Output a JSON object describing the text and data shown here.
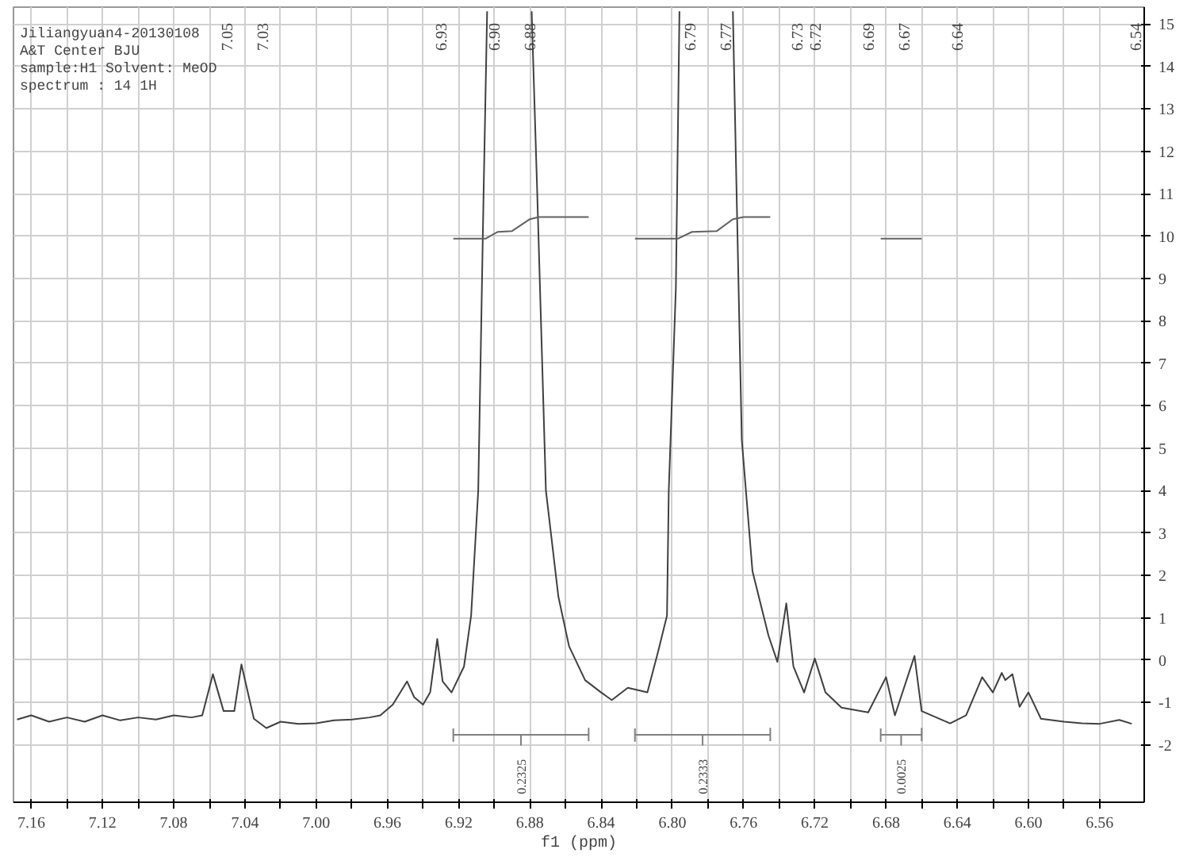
{
  "chart_data": {
    "type": "line",
    "xlabel": "f1 (ppm)",
    "xlim": [
      7.17,
      6.535
    ],
    "ylim": [
      -3.35,
      15.4
    ],
    "xticks": [
      7.16,
      {
        "value": 7.14,
        "label": null
      },
      7.12,
      {
        "value": 7.1,
        "label": null
      },
      7.08,
      {
        "value": 7.06,
        "label": null
      },
      7.04,
      {
        "value": 7.02,
        "label": null
      },
      {
        "value": 7.0,
        "label": "7.00"
      },
      {
        "value": 6.98,
        "label": null
      },
      6.96,
      {
        "value": 6.94,
        "label": null
      },
      6.92,
      {
        "value": 6.9,
        "label": null
      },
      6.88,
      {
        "value": 6.86,
        "label": null
      },
      6.84,
      {
        "value": 6.82,
        "label": null
      },
      {
        "value": 6.8,
        "label": "6.80"
      },
      {
        "value": 6.78,
        "label": null
      },
      6.76,
      {
        "value": 6.74,
        "label": null
      },
      6.72,
      {
        "value": 6.7,
        "label": null
      },
      6.68,
      {
        "value": 6.66,
        "label": null
      },
      6.64,
      {
        "value": 6.62,
        "label": null
      },
      {
        "value": 6.6,
        "label": "6.60"
      },
      {
        "value": 6.58,
        "label": null
      },
      6.56
    ],
    "yticks": [
      -2,
      -1,
      0,
      1,
      2,
      3,
      4,
      5,
      6,
      7,
      8,
      9,
      10,
      11,
      12,
      13,
      14,
      15
    ],
    "grid": true,
    "marker": "none",
    "line_style": "solid",
    "series": [
      {
        "color": "#404040",
        "x": [
          7.168,
          7.16,
          7.15,
          7.14,
          7.13,
          7.12,
          7.11,
          7.1,
          7.09,
          7.08,
          7.07,
          7.064,
          7.058,
          7.052,
          7.046,
          7.042,
          7.035,
          7.028,
          7.02,
          7.01,
          7.0,
          6.99,
          6.98,
          6.97,
          6.964,
          6.957,
          6.949,
          6.945,
          6.94,
          6.936,
          6.932,
          6.929,
          6.924,
          6.917,
          6.913,
          6.909,
          6.906,
          6.904,
          6.89,
          6.879,
          6.876,
          6.871,
          6.864,
          6.858,
          6.849,
          6.84,
          6.834,
          6.825,
          6.814,
          6.808,
          6.803,
          6.802,
          6.798,
          6.796,
          6.78,
          6.766,
          6.764,
          6.761,
          6.755,
          6.746,
          6.741,
          6.736,
          6.732,
          6.726,
          6.72,
          6.714,
          6.705,
          6.69,
          6.68,
          6.675,
          6.664,
          6.66,
          6.644,
          6.635,
          6.626,
          6.62,
          6.615,
          6.613,
          6.609,
          6.605,
          6.6,
          6.593,
          6.58,
          6.57,
          6.56,
          6.549,
          6.542
        ],
        "values": [
          -1.4,
          -1.3,
          -1.45,
          -1.35,
          -1.45,
          -1.3,
          -1.42,
          -1.35,
          -1.4,
          -1.3,
          -1.35,
          -1.3,
          -0.33,
          -1.2,
          -1.2,
          -0.1,
          -1.38,
          -1.6,
          -1.45,
          -1.5,
          -1.49,
          -1.42,
          -1.4,
          -1.35,
          -1.3,
          -1.05,
          -0.5,
          -0.87,
          -1.05,
          -0.76,
          0.5,
          -0.5,
          -0.76,
          -0.15,
          1.05,
          4.0,
          11.0,
          15.3,
          null,
          15.3,
          11.2,
          4.0,
          1.5,
          0.33,
          -0.47,
          -0.76,
          -0.94,
          -0.65,
          -0.76,
          0.2,
          1.05,
          4.0,
          8.8,
          15.3,
          null,
          15.3,
          11.2,
          5.2,
          2.1,
          0.58,
          -0.04,
          1.34,
          -0.15,
          -0.76,
          0.04,
          -0.76,
          -1.12,
          -1.23,
          -0.4,
          -1.3,
          0.1,
          -1.2,
          -1.49,
          -1.3,
          -0.4,
          -0.76,
          -0.3,
          -0.47,
          -0.33,
          -1.1,
          -0.76,
          -1.38,
          -1.45,
          -1.49,
          -1.5,
          -1.41,
          -1.5
        ]
      },
      {
        "color": "#606060",
        "x": [
          6.923,
          6.905,
          6.898,
          6.89,
          6.88,
          6.875,
          6.847
        ],
        "values": [
          9.94,
          9.94,
          10.1,
          10.12,
          10.4,
          10.45,
          10.45
        ]
      },
      {
        "color": "#606060",
        "x": [
          6.821,
          6.797,
          6.789,
          6.775,
          6.766,
          6.76,
          6.745
        ],
        "values": [
          9.94,
          9.94,
          10.1,
          10.12,
          10.4,
          10.45,
          10.45
        ]
      },
      {
        "color": "#606060",
        "x": [
          6.683,
          6.66
        ],
        "values": [
          9.94,
          9.94
        ]
      },
      {
        "color": "#808080",
        "x": [
          6.923,
          6.923,
          6.923,
          6.885,
          6.885,
          6.885,
          6.847,
          6.847,
          6.847
        ],
        "values": [
          -1.61,
          -1.91,
          -1.76,
          -1.76,
          -2.0,
          -1.76,
          -1.76,
          -1.61,
          -1.91
        ]
      },
      {
        "color": "#808080",
        "x": [
          6.821,
          6.821,
          6.821,
          6.783,
          6.783,
          6.783,
          6.745,
          6.745,
          6.745
        ],
        "values": [
          -1.61,
          -1.91,
          -1.76,
          -1.76,
          -2.0,
          -1.76,
          -1.76,
          -1.61,
          -1.91
        ]
      },
      {
        "color": "#808080",
        "x": [
          6.683,
          6.683,
          6.683,
          6.6715,
          6.6715,
          6.6715,
          6.66,
          6.66,
          6.66
        ],
        "values": [
          -1.61,
          -1.91,
          -1.76,
          -1.76,
          -2.0,
          -1.76,
          -1.76,
          -1.61,
          -1.91
        ]
      }
    ],
    "annotations": [
      "Jiliangyuan4-20130108",
      "A&T Center BJU",
      "sample:H1  Solvent: MeOD",
      "spectrum : 14  1H",
      {
        "text": "0.2325",
        "x": 6.885,
        "y": -2.0
      },
      {
        "text": "0.2333",
        "x": 6.783,
        "y": -2.0
      },
      {
        "text": "0.0025",
        "x": 6.6715,
        "y": -2.0
      },
      "7.05",
      "7.03",
      "6.93",
      "6.90",
      "6.88",
      "6.79",
      "6.77",
      "6.73",
      "6.72",
      "6.69",
      "6.67",
      "6.64",
      "6.54"
    ]
  }
}
